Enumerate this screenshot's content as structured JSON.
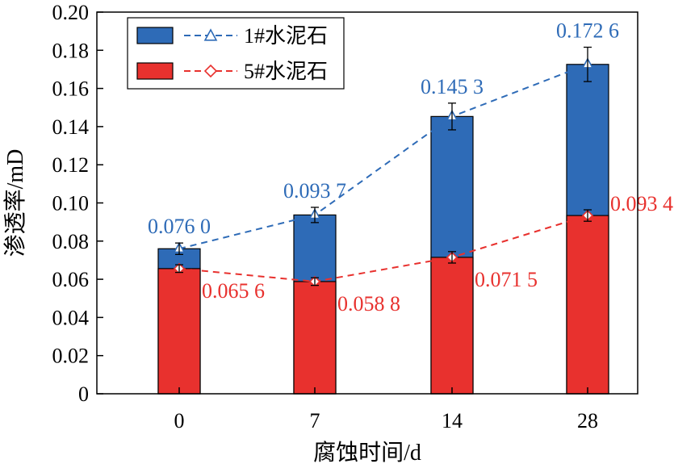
{
  "chart_data": {
    "type": "bar",
    "stacked": false,
    "overlay": "lines-with-markers",
    "xlabel": "腐蚀时间/d",
    "ylabel": "渗透率/mD",
    "categories": [
      "0",
      "7",
      "14",
      "28"
    ],
    "ylim": [
      0,
      0.2
    ],
    "yticks": [
      "0",
      "0.02",
      "0.04",
      "0.06",
      "0.08",
      "0.10",
      "0.12",
      "0.14",
      "0.16",
      "0.18",
      "0.20"
    ],
    "grid": false,
    "legend_position": "top-left",
    "series": [
      {
        "name": "1#水泥石",
        "color": "#2e6bb7",
        "marker": "triangle",
        "values": [
          0.076,
          0.0937,
          0.1453,
          0.1726
        ],
        "labels": [
          "0.076 0",
          "0.093 7",
          "0.145 3",
          "0.172 6"
        ],
        "errors": [
          0.003,
          0.004,
          0.007,
          0.009
        ]
      },
      {
        "name": "5#水泥石",
        "color": "#e8312e",
        "marker": "diamond",
        "values": [
          0.0656,
          0.0588,
          0.0715,
          0.0934
        ],
        "labels": [
          "0.065 6",
          "0.058 8",
          "0.071 5",
          "0.093 4"
        ],
        "errors": [
          0.002,
          0.002,
          0.003,
          0.003
        ]
      }
    ]
  }
}
